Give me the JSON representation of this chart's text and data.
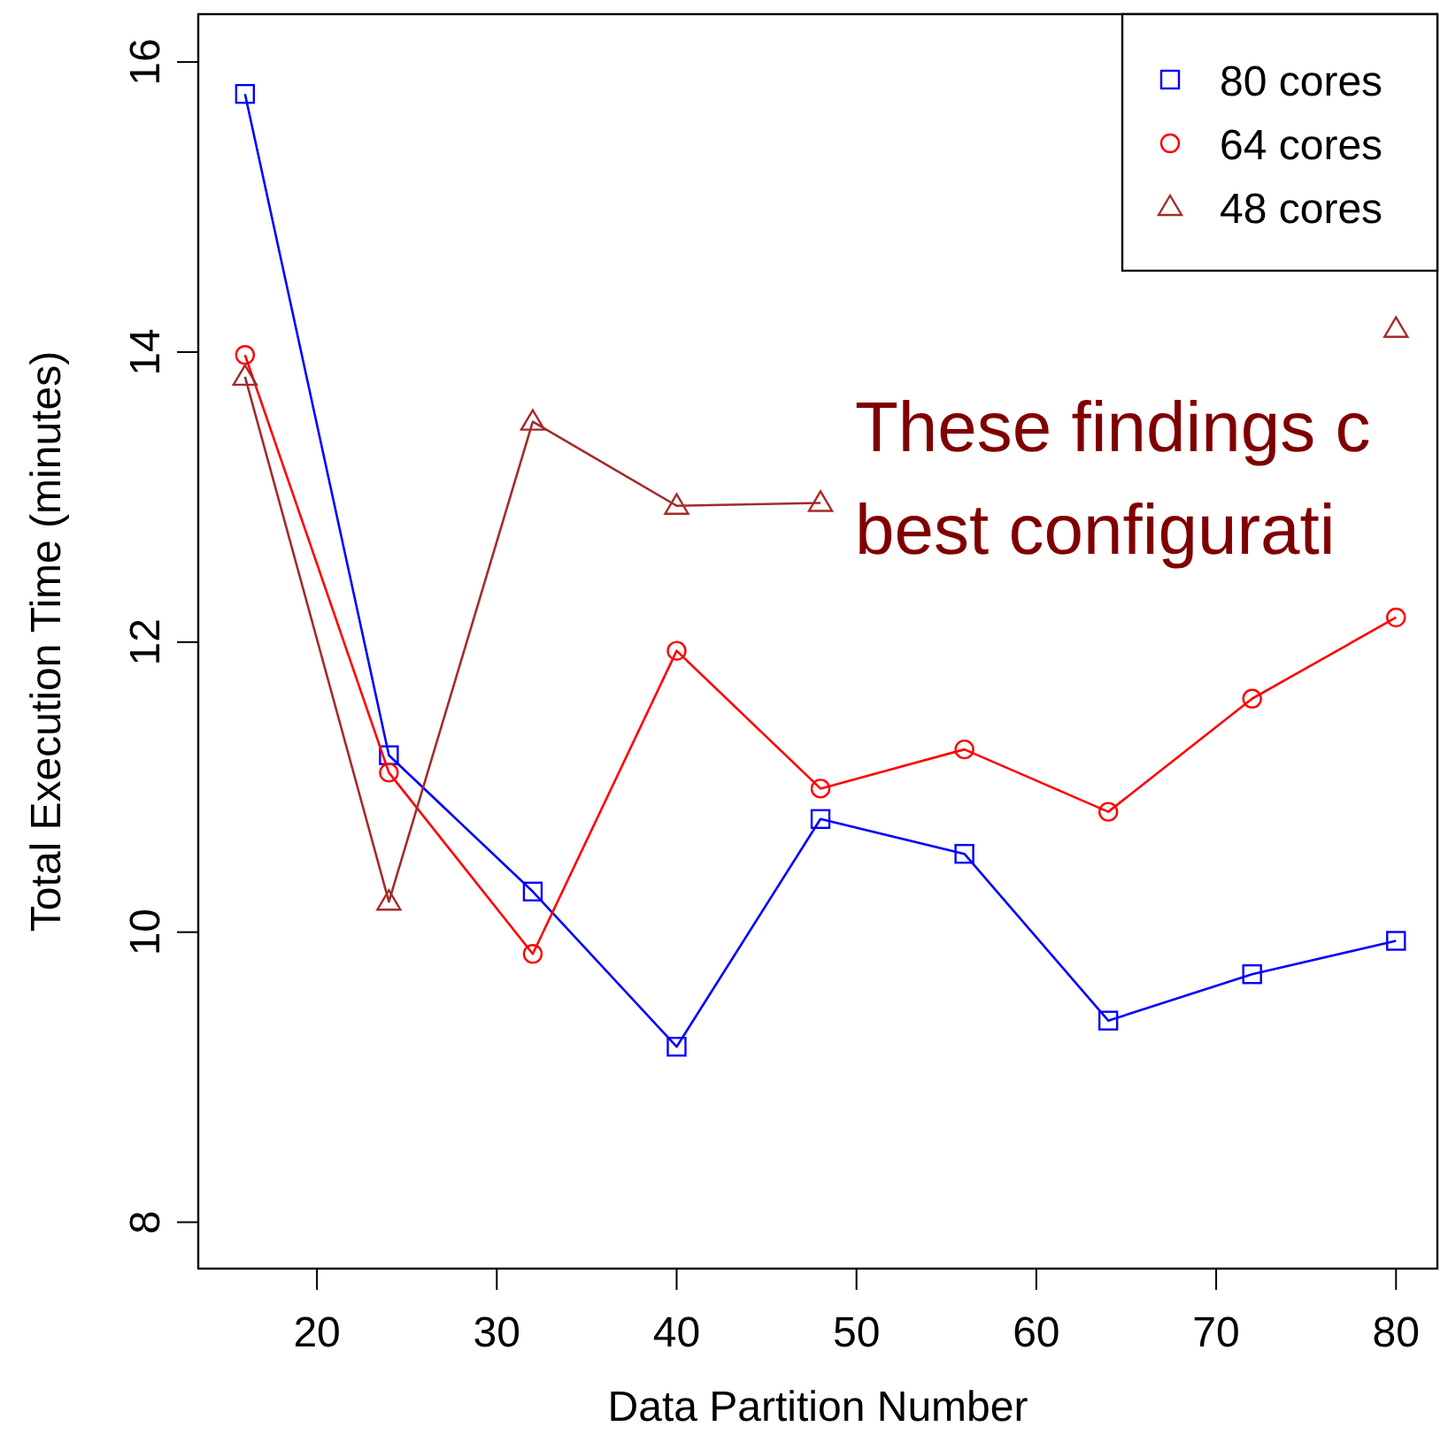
{
  "chart_data": {
    "type": "line",
    "xlabel": "Data Partition Number",
    "ylabel": "Total Execution Time (minutes)",
    "x": [
      16,
      24,
      32,
      40,
      48,
      56,
      64,
      72,
      80
    ],
    "xlim": [
      13.4,
      82.3
    ],
    "xticks": [
      20,
      30,
      40,
      50,
      60,
      70,
      80
    ],
    "ylim": [
      7.68,
      16.33
    ],
    "yticks": [
      8,
      10,
      12,
      14,
      16
    ],
    "grid": false,
    "legend": "top right",
    "series": [
      {
        "name": "80 cores",
        "color": "#0000ff",
        "marker": "square",
        "values": [
          15.78,
          11.22,
          10.28,
          9.21,
          10.78,
          10.54,
          9.39,
          9.71,
          9.94
        ]
      },
      {
        "name": "64 cores",
        "color": "#ff0000",
        "marker": "circle",
        "values": [
          13.98,
          11.1,
          9.85,
          11.94,
          10.99,
          11.26,
          10.83,
          11.61,
          12.17
        ]
      },
      {
        "name": "48 cores",
        "color": "#a52a2a",
        "marker": "triangle",
        "values": [
          13.83,
          10.21,
          13.52,
          12.94,
          12.96,
          null,
          null,
          null,
          14.16
        ]
      }
    ],
    "annotations": [
      "These findings c\nbest configurati"
    ]
  }
}
